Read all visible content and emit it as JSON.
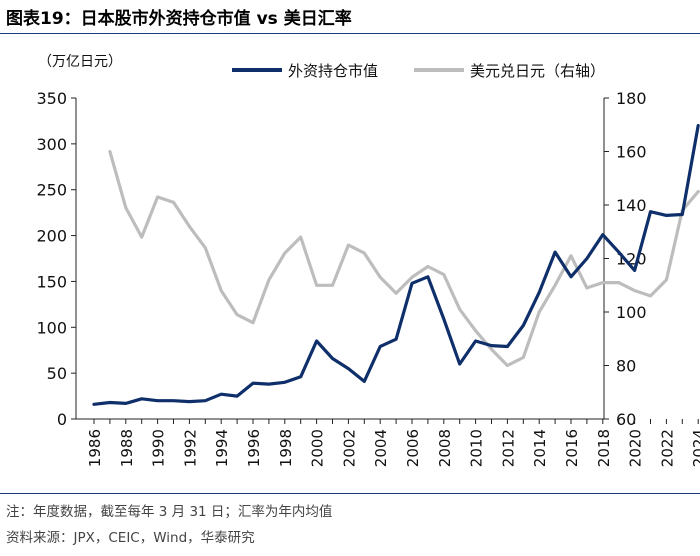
{
  "header": {
    "title": "图表19：日本股市外资持仓市值 vs 美日汇率"
  },
  "footer": {
    "note": "注：年度数据，截至每年 3 月 31 日；汇率为年内均值",
    "source": "资料来源：JPX，CEIC，Wind，华泰研究"
  },
  "colors": {
    "navy": "#0f2f6b",
    "gray": "#bdbdbd",
    "rule": "#1f3d7a"
  },
  "chart_data": {
    "type": "line",
    "title": "日本股市外资持仓市值 vs 美日汇率",
    "ylabel": "（万亿日元）",
    "y2label": "",
    "ylim": [
      0,
      350
    ],
    "y2lim": [
      60,
      180
    ],
    "yticks": [
      0,
      50,
      100,
      150,
      200,
      250,
      300,
      350
    ],
    "y2ticks": [
      60,
      80,
      100,
      120,
      140,
      160,
      180
    ],
    "xticks": [
      1986,
      1988,
      1990,
      1992,
      1994,
      1996,
      1998,
      2000,
      2002,
      2004,
      2006,
      2008,
      2010,
      2012,
      2014,
      2016,
      2018,
      2020,
      2022,
      2024
    ],
    "xlim": [
      1986,
      2024
    ],
    "legend_position": "top-right",
    "series": [
      {
        "name": "外资持仓市值",
        "axis": "left",
        "color": "#0f2f6b",
        "x": [
          1986,
          1987,
          1988,
          1989,
          1990,
          1991,
          1992,
          1993,
          1994,
          1995,
          1996,
          1997,
          1998,
          1999,
          2000,
          2001,
          2002,
          2003,
          2004,
          2005,
          2006,
          2007,
          2008,
          2009,
          2010,
          2011,
          2012,
          2013,
          2014,
          2015,
          2016,
          2017,
          2018,
          2019,
          2020,
          2021,
          2022,
          2023,
          2024
        ],
        "values": [
          16,
          18,
          17,
          22,
          20,
          20,
          19,
          20,
          27,
          25,
          39,
          38,
          40,
          46,
          85,
          66,
          55,
          41,
          79,
          87,
          148,
          155,
          109,
          60,
          85,
          80,
          79,
          102,
          138,
          182,
          155,
          175,
          201,
          182,
          162,
          226,
          222,
          223,
          320
        ]
      },
      {
        "name": "美元兑日元（右轴）",
        "axis": "right",
        "color": "#bdbdbd",
        "x": [
          1987,
          1988,
          1989,
          1990,
          1991,
          1992,
          1993,
          1994,
          1995,
          1996,
          1997,
          1998,
          1999,
          2000,
          2001,
          2002,
          2003,
          2004,
          2005,
          2006,
          2007,
          2008,
          2009,
          2010,
          2011,
          2012,
          2013,
          2014,
          2015,
          2016,
          2017,
          2018,
          2019,
          2020,
          2021,
          2022,
          2023,
          2024
        ],
        "values": [
          160,
          139,
          128,
          143,
          141,
          132,
          124,
          108,
          99,
          96,
          112,
          122,
          128,
          110,
          110,
          125,
          122,
          113,
          107,
          113,
          117,
          114,
          101,
          93,
          86,
          80,
          83,
          100,
          110,
          121,
          109,
          111,
          111,
          108,
          106,
          112,
          138,
          145
        ]
      }
    ]
  }
}
